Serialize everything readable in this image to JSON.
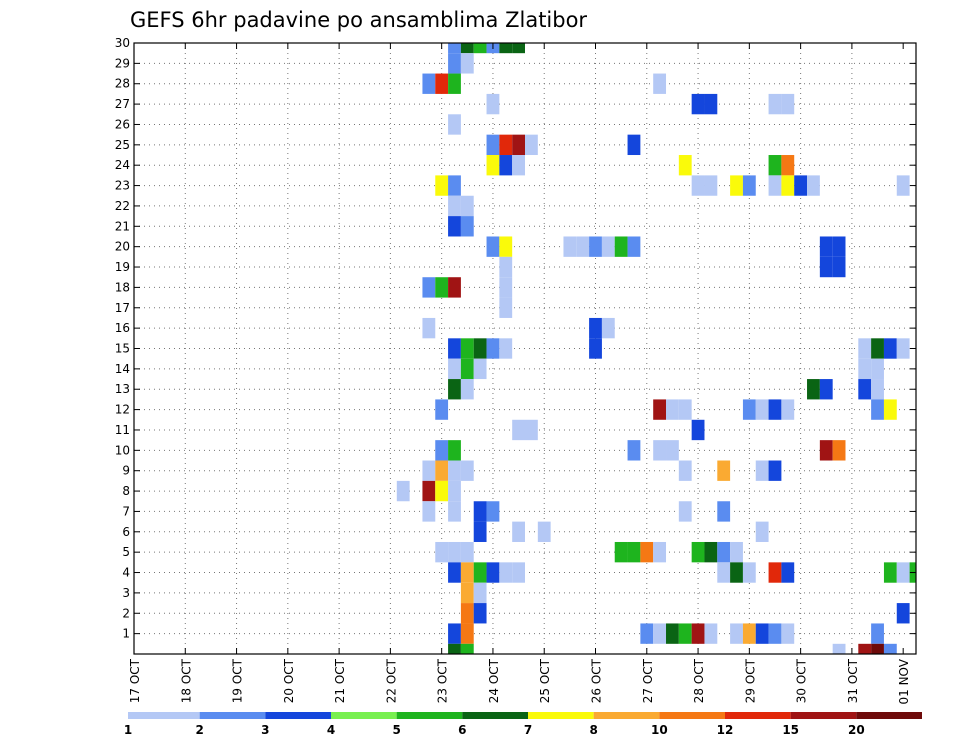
{
  "chart_data": {
    "type": "heatmap",
    "title": "GEFS 6hr padavine po ansamblima Zlatibor",
    "xlabel": "",
    "ylabel": "",
    "x_ticks": [
      "17 OCT",
      "18 OCT",
      "19 OCT",
      "20 OCT",
      "21 OCT",
      "22 OCT",
      "23 OCT",
      "24 OCT",
      "25 OCT",
      "26 OCT",
      "27 OCT",
      "28 OCT",
      "29 OCT",
      "30 OCT",
      "31 OCT",
      "01 NOV"
    ],
    "y_ticks": [
      1,
      2,
      3,
      4,
      5,
      6,
      7,
      8,
      9,
      10,
      11,
      12,
      13,
      14,
      15,
      16,
      17,
      18,
      19,
      20,
      21,
      22,
      23,
      24,
      25,
      26,
      27,
      28,
      29,
      30
    ],
    "x_range": [
      0,
      61
    ],
    "y_range": [
      0,
      30
    ],
    "x_step": "6hr",
    "grid": true,
    "colorbar": {
      "labels": [
        "1",
        "2",
        "3",
        "4",
        "5",
        "6",
        "7",
        "8",
        "10",
        "12",
        "15",
        "20"
      ],
      "colors": [
        "#b4c8f5",
        "#5a8cf0",
        "#1446dc",
        "#78f050",
        "#1eb41e",
        "#0a6414",
        "#fafa0a",
        "#faaa32",
        "#f57814",
        "#e1280a",
        "#a01414",
        "#6e0a0a"
      ]
    },
    "cells": [
      [
        25,
        30,
        2
      ],
      [
        26,
        30,
        6
      ],
      [
        27,
        30,
        5
      ],
      [
        28,
        30,
        2
      ],
      [
        29,
        30,
        6
      ],
      [
        30,
        30,
        6
      ],
      [
        25,
        29,
        2
      ],
      [
        26,
        29,
        1
      ],
      [
        23,
        28,
        2
      ],
      [
        24,
        28,
        10
      ],
      [
        25,
        28,
        5
      ],
      [
        41,
        28,
        1
      ],
      [
        28,
        27,
        1
      ],
      [
        44,
        27,
        3
      ],
      [
        45,
        27,
        3
      ],
      [
        50,
        27,
        1
      ],
      [
        51,
        27,
        1
      ],
      [
        25,
        26,
        1
      ],
      [
        28,
        25,
        2
      ],
      [
        29,
        25,
        10
      ],
      [
        30,
        25,
        11
      ],
      [
        31,
        25,
        1
      ],
      [
        39,
        25,
        3
      ],
      [
        28,
        24,
        7
      ],
      [
        29,
        24,
        3
      ],
      [
        30,
        24,
        1
      ],
      [
        43,
        24,
        7
      ],
      [
        50,
        24,
        5
      ],
      [
        51,
        24,
        9
      ],
      [
        24,
        23,
        7
      ],
      [
        25,
        23,
        2
      ],
      [
        44,
        23,
        1
      ],
      [
        45,
        23,
        1
      ],
      [
        47,
        23,
        7
      ],
      [
        48,
        23,
        2
      ],
      [
        50,
        23,
        1
      ],
      [
        51,
        23,
        7
      ],
      [
        52,
        23,
        3
      ],
      [
        53,
        23,
        1
      ],
      [
        60,
        23,
        1
      ],
      [
        25,
        22,
        1
      ],
      [
        26,
        22,
        1
      ],
      [
        25,
        21,
        3
      ],
      [
        26,
        21,
        2
      ],
      [
        28,
        20,
        2
      ],
      [
        29,
        20,
        7
      ],
      [
        34,
        20,
        1
      ],
      [
        35,
        20,
        1
      ],
      [
        36,
        20,
        2
      ],
      [
        37,
        20,
        1
      ],
      [
        38,
        20,
        5
      ],
      [
        39,
        20,
        2
      ],
      [
        54,
        20,
        3
      ],
      [
        55,
        20,
        3
      ],
      [
        29,
        19,
        1
      ],
      [
        54,
        19,
        3
      ],
      [
        55,
        19,
        3
      ],
      [
        23,
        18,
        2
      ],
      [
        24,
        18,
        5
      ],
      [
        25,
        18,
        11
      ],
      [
        29,
        18,
        1
      ],
      [
        29,
        17,
        1
      ],
      [
        23,
        16,
        1
      ],
      [
        36,
        16,
        3
      ],
      [
        37,
        16,
        1
      ],
      [
        25,
        15,
        3
      ],
      [
        26,
        15,
        5
      ],
      [
        27,
        15,
        6
      ],
      [
        28,
        15,
        2
      ],
      [
        29,
        15,
        1
      ],
      [
        36,
        15,
        3
      ],
      [
        57,
        15,
        1
      ],
      [
        58,
        15,
        6
      ],
      [
        59,
        15,
        3
      ],
      [
        60,
        15,
        1
      ],
      [
        25,
        14,
        1
      ],
      [
        26,
        14,
        5
      ],
      [
        27,
        14,
        1
      ],
      [
        57,
        14,
        1
      ],
      [
        58,
        14,
        1
      ],
      [
        25,
        13,
        6
      ],
      [
        26,
        13,
        1
      ],
      [
        53,
        13,
        6
      ],
      [
        54,
        13,
        3
      ],
      [
        57,
        13,
        3
      ],
      [
        58,
        13,
        1
      ],
      [
        24,
        12,
        2
      ],
      [
        41,
        12,
        11
      ],
      [
        42,
        12,
        1
      ],
      [
        43,
        12,
        1
      ],
      [
        48,
        12,
        2
      ],
      [
        49,
        12,
        1
      ],
      [
        50,
        12,
        3
      ],
      [
        51,
        12,
        1
      ],
      [
        58,
        12,
        2
      ],
      [
        59,
        12,
        7
      ],
      [
        30,
        11,
        1
      ],
      [
        31,
        11,
        1
      ],
      [
        44,
        11,
        3
      ],
      [
        24,
        10,
        2
      ],
      [
        25,
        10,
        5
      ],
      [
        39,
        10,
        2
      ],
      [
        41,
        10,
        1
      ],
      [
        42,
        10,
        1
      ],
      [
        54,
        10,
        11
      ],
      [
        55,
        10,
        9
      ],
      [
        23,
        9,
        1
      ],
      [
        24,
        9,
        8
      ],
      [
        25,
        9,
        1
      ],
      [
        26,
        9,
        1
      ],
      [
        43,
        9,
        1
      ],
      [
        46,
        9,
        8
      ],
      [
        49,
        9,
        1
      ],
      [
        50,
        9,
        3
      ],
      [
        21,
        8,
        1
      ],
      [
        23,
        8,
        11
      ],
      [
        24,
        8,
        7
      ],
      [
        25,
        8,
        1
      ],
      [
        23,
        7,
        1
      ],
      [
        25,
        7,
        1
      ],
      [
        27,
        7,
        3
      ],
      [
        28,
        7,
        2
      ],
      [
        43,
        7,
        1
      ],
      [
        46,
        7,
        2
      ],
      [
        27,
        6,
        3
      ],
      [
        30,
        6,
        1
      ],
      [
        32,
        6,
        1
      ],
      [
        49,
        6,
        1
      ],
      [
        24,
        5,
        1
      ],
      [
        25,
        5,
        1
      ],
      [
        26,
        5,
        1
      ],
      [
        38,
        5,
        5
      ],
      [
        39,
        5,
        5
      ],
      [
        40,
        5,
        9
      ],
      [
        41,
        5,
        1
      ],
      [
        44,
        5,
        5
      ],
      [
        45,
        5,
        6
      ],
      [
        46,
        5,
        2
      ],
      [
        47,
        5,
        1
      ],
      [
        25,
        4,
        3
      ],
      [
        26,
        4,
        8
      ],
      [
        27,
        4,
        5
      ],
      [
        28,
        4,
        3
      ],
      [
        29,
        4,
        1
      ],
      [
        30,
        4,
        1
      ],
      [
        46,
        4,
        1
      ],
      [
        47,
        4,
        6
      ],
      [
        48,
        4,
        1
      ],
      [
        50,
        4,
        10
      ],
      [
        51,
        4,
        3
      ],
      [
        59,
        4,
        5
      ],
      [
        60,
        4,
        1
      ],
      [
        61,
        4,
        5
      ],
      [
        26,
        3,
        8
      ],
      [
        27,
        3,
        1
      ],
      [
        26,
        2,
        9
      ],
      [
        27,
        2,
        3
      ],
      [
        60,
        2,
        3
      ],
      [
        25,
        1,
        3
      ],
      [
        26,
        1,
        9
      ],
      [
        40,
        1,
        2
      ],
      [
        41,
        1,
        1
      ],
      [
        42,
        1,
        6
      ],
      [
        43,
        1,
        5
      ],
      [
        44,
        1,
        11
      ],
      [
        45,
        1,
        1
      ],
      [
        47,
        1,
        1
      ],
      [
        48,
        1,
        8
      ],
      [
        49,
        1,
        3
      ],
      [
        50,
        1,
        2
      ],
      [
        51,
        1,
        1
      ],
      [
        58,
        1,
        2
      ],
      [
        25,
        0,
        6
      ],
      [
        26,
        0,
        5
      ],
      [
        55,
        0,
        1
      ],
      [
        57,
        0,
        11
      ],
      [
        58,
        0,
        12
      ],
      [
        59,
        0,
        2
      ]
    ]
  }
}
